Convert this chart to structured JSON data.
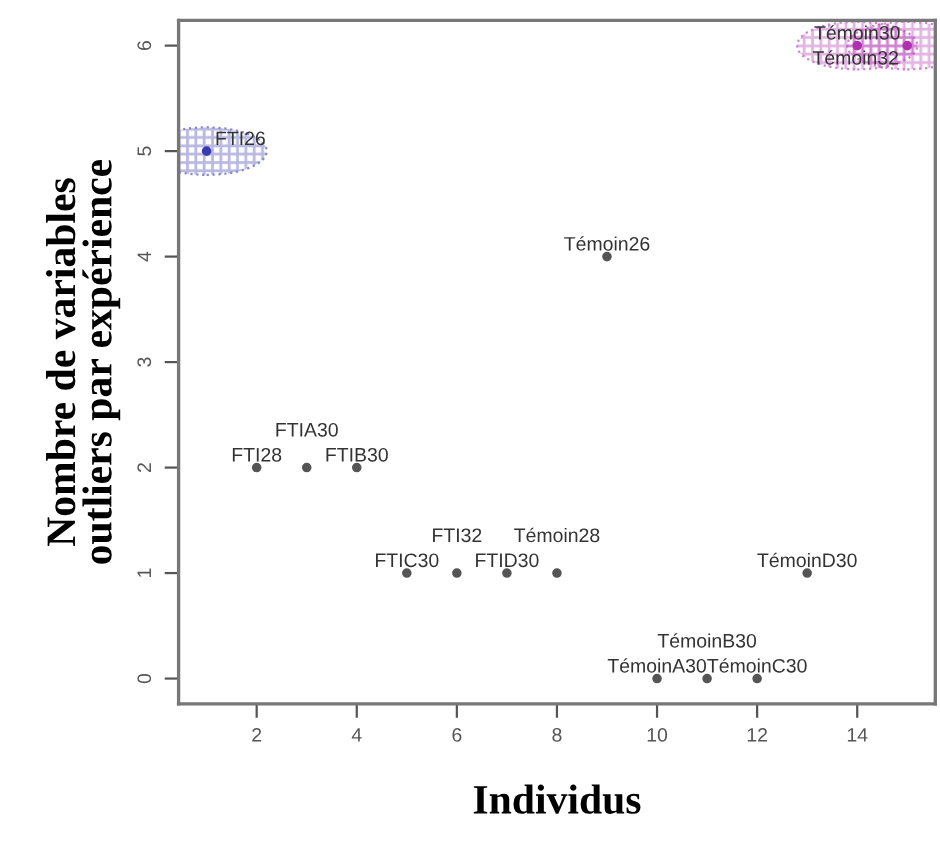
{
  "chart_data": {
    "type": "scatter",
    "xlabel": "Individus",
    "ylabel": "Nombre de variables\noutliers par expérience",
    "marker": "circle",
    "x": [
      1,
      2,
      3,
      4,
      5,
      6,
      7,
      8,
      9,
      10,
      11,
      12,
      13,
      14,
      15
    ],
    "values": [
      5,
      2,
      2,
      2,
      1,
      1,
      1,
      1,
      4,
      0,
      0,
      0,
      1,
      6,
      6
    ],
    "value_labels": [
      "FTI26",
      "FTI28",
      "FTIA30",
      "FTIB30",
      "FTIC30",
      "FTI32",
      "FTID30",
      "Témoin28",
      "Témoin26",
      "TémoinA30",
      "TémoinB30",
      "TémoinC30",
      "TémoinD30",
      "Témoin30",
      "Témoin32"
    ],
    "colors": [
      "#3a3ab0",
      null,
      null,
      null,
      null,
      null,
      null,
      null,
      null,
      null,
      null,
      null,
      null,
      "#b030b0",
      "#b030b0"
    ],
    "xlim": [
      0.44,
      15.56
    ],
    "ylim": [
      -0.24,
      6.24
    ],
    "xticks": [
      2,
      4,
      6,
      8,
      10,
      12,
      14
    ],
    "yticks": [
      0,
      1,
      2,
      3,
      4,
      5,
      6
    ],
    "grid": false,
    "legend": false
  }
}
